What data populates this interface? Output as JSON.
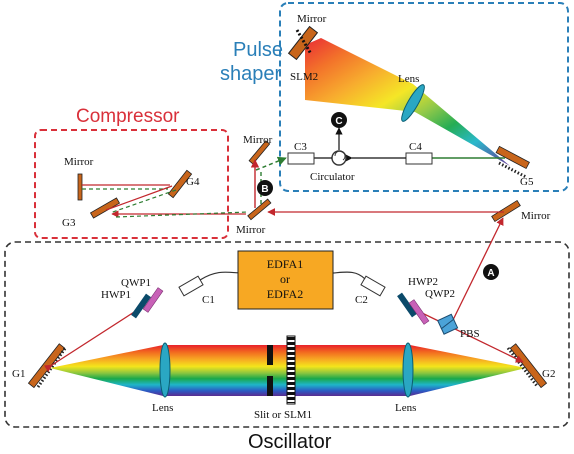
{
  "colors": {
    "compressor_box": "#d9303a",
    "pulse_shaper_box": "#2a7fb8",
    "oscillator_box": "#333333",
    "red_beam": "#c2272d",
    "green_beam": "#2e7d32",
    "mirror": "#c8651b",
    "edfa_fill": "#f7a823",
    "hwp_fill": "#0b4a6a",
    "qwp_fill": "#c861b7",
    "pbs_fill": "#4ba3d8",
    "lens_fill": "#2aa7c3",
    "marker_fill": "#111111"
  },
  "titles": {
    "compressor": "Compressor",
    "pulse_shaper_line1": "Pulse",
    "pulse_shaper_line2": "shaper",
    "oscillator": "Oscillator"
  },
  "amplifier": {
    "line1": "EDFA1",
    "line2": "or",
    "line3": "EDFA2"
  },
  "labels": {
    "mirror_ps": "Mirror",
    "slm2": "SLM2",
    "lens_ps": "Lens",
    "c3": "C3",
    "c4": "C4",
    "circulator": "Circulator",
    "g5": "G5",
    "mirror_comp": "Mirror",
    "g4": "G4",
    "g3": "G3",
    "mirror_mid_top": "Mirror",
    "mirror_mid_bottom": "Mirror",
    "mirror_right": "Mirror",
    "qwp1": "QWP1",
    "hwp1": "HWP1",
    "c1": "C1",
    "c2": "C2",
    "hwp2": "HWP2",
    "qwp2": "QWP2",
    "pbs": "PBS",
    "g1": "G1",
    "g2": "G2",
    "lens_left": "Lens",
    "lens_right": "Lens",
    "slit": "Slit or SLM1"
  },
  "markers": {
    "a": "A",
    "b": "B",
    "c": "C"
  },
  "spectrum_colors": [
    "#e8212b",
    "#f26a1f",
    "#f7a823",
    "#f4e51b",
    "#8cc63f",
    "#1aa84b",
    "#1fb5c9",
    "#2b59c3",
    "#5b2d90"
  ]
}
